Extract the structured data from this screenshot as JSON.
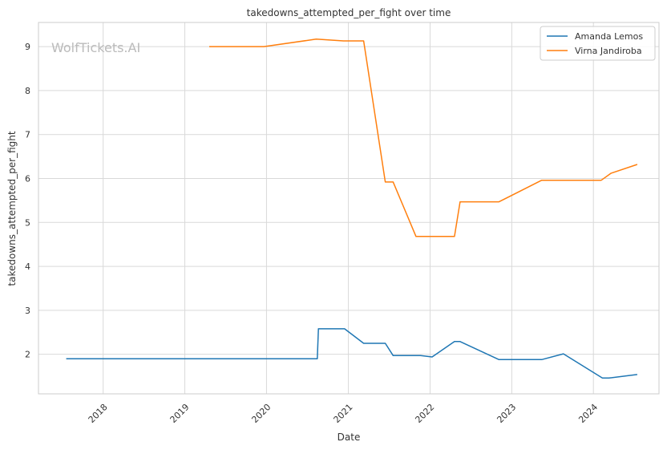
{
  "chart_data": {
    "type": "line",
    "title": "takedowns_attempted_per_fight over time",
    "xlabel": "Date",
    "ylabel": "takedowns_attempted_per_fight",
    "watermark": "WolfTickets.AI",
    "xlim": [
      "2017-03-18",
      "2024-10-20"
    ],
    "ylim": [
      1.1,
      9.55
    ],
    "x_ticks": [
      "2018",
      "2019",
      "2020",
      "2021",
      "2022",
      "2023",
      "2024"
    ],
    "y_ticks": [
      2,
      3,
      4,
      5,
      6,
      7,
      8,
      9
    ],
    "grid": true,
    "legend_position": "top-right",
    "series": [
      {
        "name": "Amanda Lemos",
        "color": "#1f77b4",
        "points": [
          [
            "2017-07-20",
            1.9
          ],
          [
            "2020-08-15",
            1.9
          ],
          [
            "2020-08-20",
            2.58
          ],
          [
            "2020-12-15",
            2.58
          ],
          [
            "2021-03-10",
            2.25
          ],
          [
            "2021-06-15",
            2.25
          ],
          [
            "2021-07-20",
            1.97
          ],
          [
            "2021-11-20",
            1.97
          ],
          [
            "2022-01-10",
            1.94
          ],
          [
            "2022-04-20",
            2.29
          ],
          [
            "2022-05-15",
            2.29
          ],
          [
            "2022-11-05",
            1.88
          ],
          [
            "2023-05-15",
            1.88
          ],
          [
            "2023-08-20",
            2.01
          ],
          [
            "2024-02-10",
            1.46
          ],
          [
            "2024-03-10",
            1.46
          ],
          [
            "2024-07-15",
            1.54
          ]
        ]
      },
      {
        "name": "Virna Jandiroba",
        "color": "#ff7f0e",
        "points": [
          [
            "2019-04-20",
            9.0
          ],
          [
            "2019-12-20",
            9.0
          ],
          [
            "2020-08-10",
            9.17
          ],
          [
            "2020-12-10",
            9.13
          ],
          [
            "2021-03-10",
            9.13
          ],
          [
            "2021-06-15",
            5.92
          ],
          [
            "2021-07-20",
            5.92
          ],
          [
            "2021-10-30",
            4.68
          ],
          [
            "2022-04-20",
            4.68
          ],
          [
            "2022-05-15",
            5.47
          ],
          [
            "2022-11-05",
            5.47
          ],
          [
            "2023-05-15",
            5.96
          ],
          [
            "2024-02-05",
            5.96
          ],
          [
            "2024-03-20",
            6.12
          ],
          [
            "2024-07-15",
            6.32
          ]
        ]
      }
    ]
  }
}
